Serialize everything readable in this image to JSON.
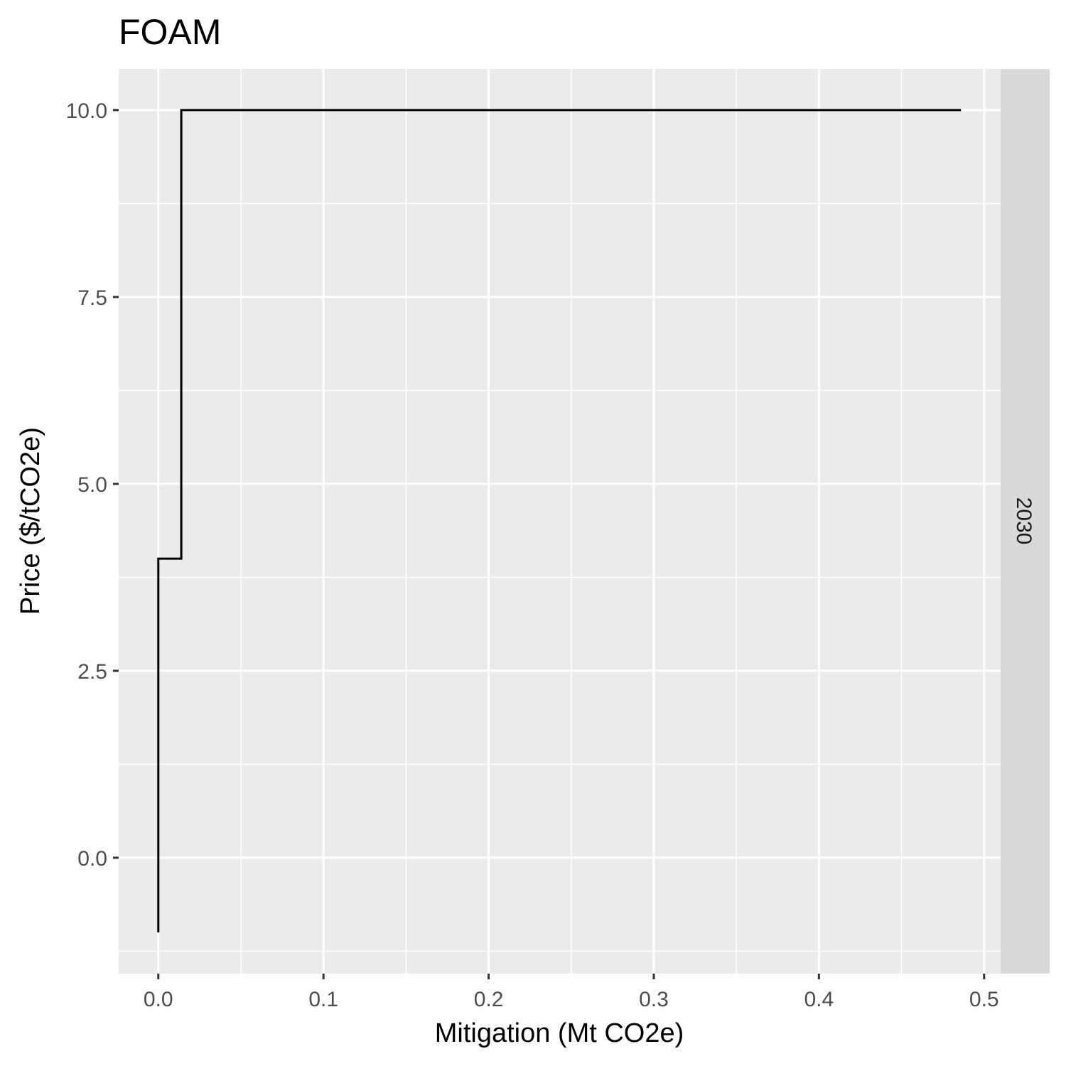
{
  "chart_data": {
    "type": "line",
    "title": "FOAM",
    "xlabel": "Mitigation (Mt CO2e)",
    "ylabel": "Price ($/tCO2e)",
    "facet_label": "2030",
    "xlim": [
      -0.024,
      0.51
    ],
    "ylim": [
      -1.55,
      10.55
    ],
    "x_ticks": [
      0.0,
      0.1,
      0.2,
      0.3,
      0.4,
      0.5
    ],
    "x_tick_labels": [
      "0.0",
      "0.1",
      "0.2",
      "0.3",
      "0.4",
      "0.5"
    ],
    "y_ticks": [
      0.0,
      2.5,
      5.0,
      7.5,
      10.0
    ],
    "y_tick_labels": [
      "0.0",
      "2.5",
      "5.0",
      "7.5",
      "10.0"
    ],
    "series": [
      {
        "step": true,
        "x": [
          0.0,
          0.0,
          0.0,
          0.0139,
          0.0139,
          0.486
        ],
        "y": [
          -1.0,
          -1.0,
          4.0,
          4.0,
          10.0,
          10.0
        ]
      }
    ],
    "grid": true,
    "legend": "none",
    "colors": {
      "panel_background": "#ebebeb",
      "grid": "#ffffff",
      "strip_background": "#d9d9d9",
      "line": "#000000"
    }
  }
}
